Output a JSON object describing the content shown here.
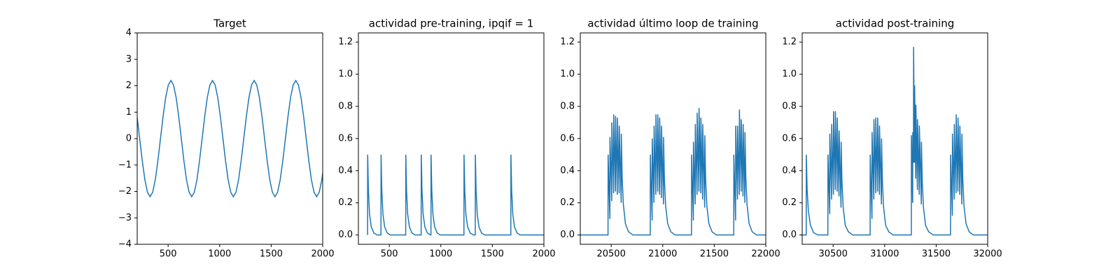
{
  "chart_data": [
    {
      "type": "line",
      "title": "Target",
      "color": "#1f77b4",
      "xlim": [
        200,
        2000
      ],
      "ylim": [
        -4,
        4
      ],
      "xticks": [
        500,
        1000,
        1500,
        2000
      ],
      "yticks": [
        {
          "value": -4,
          "label": "−4"
        },
        {
          "value": -3,
          "label": "−3"
        },
        {
          "value": -2,
          "label": "−2"
        },
        {
          "value": -1,
          "label": "−1"
        },
        0,
        1,
        2,
        3,
        4
      ],
      "x": [
        200,
        224,
        249.25,
        274.5,
        299.75,
        325,
        350.25,
        375.5,
        400.75,
        426,
        451.25,
        476.5,
        501.75,
        527,
        552.25,
        577.5,
        602.75,
        628,
        653.25,
        678.5,
        703.75,
        729,
        754.25,
        779.5,
        804.75,
        830,
        855.25,
        880.5,
        905.75,
        931,
        956.25,
        981.5,
        1006.75,
        1032,
        1057.25,
        1082.5,
        1107.75,
        1133,
        1158.25,
        1183.5,
        1208.75,
        1234,
        1259.25,
        1284.5,
        1309.75,
        1335,
        1360.25,
        1385.5,
        1410.75,
        1436,
        1461.25,
        1486.5,
        1511.75,
        1537,
        1562.25,
        1587.5,
        1612.75,
        1638,
        1663.25,
        1688.5,
        1713.75,
        1739,
        1764.25,
        1789.5,
        1814.75,
        1840,
        1865.25,
        1890.5,
        1915.75,
        1941,
        1966.25,
        1991.5,
        2000
      ],
      "values": [
        0.8,
        0,
        -0.84,
        -1.56,
        -2.03,
        -2.2,
        -2.03,
        -1.56,
        -0.84,
        0,
        0.84,
        1.56,
        2.03,
        2.2,
        2.03,
        1.56,
        0.84,
        0,
        -0.84,
        -1.56,
        -2.03,
        -2.2,
        -2.03,
        -1.56,
        -0.84,
        0,
        0.84,
        1.56,
        2.03,
        2.2,
        2.03,
        1.56,
        0.84,
        0,
        -0.84,
        -1.56,
        -2.03,
        -2.2,
        -2.03,
        -1.56,
        -0.84,
        0,
        0.84,
        1.56,
        2.03,
        2.2,
        2.03,
        1.56,
        0.84,
        0,
        -0.84,
        -1.56,
        -2.03,
        -2.2,
        -2.03,
        -1.56,
        -0.84,
        0,
        0.84,
        1.56,
        2.03,
        2.2,
        2.03,
        1.56,
        0.84,
        0,
        -0.84,
        -1.56,
        -2.03,
        -2.2,
        -2.03,
        -1.56,
        -1.3
      ]
    },
    {
      "type": "line",
      "title": "actividad pre-training, ipqif = 1",
      "color": "#1f77b4",
      "xlim": [
        200,
        2000
      ],
      "ylim": [
        -0.058,
        1.257
      ],
      "xticks": [
        500,
        1000,
        1500,
        2000
      ],
      "yticks": [
        {
          "value": 0,
          "label": "0.0"
        },
        0.2,
        0.4,
        0.6,
        0.8,
        {
          "value": 1,
          "label": "1.0"
        },
        1.2
      ],
      "x": [
        289,
        290,
        297,
        308,
        325,
        350,
        380,
        419,
        420,
        427,
        438,
        455,
        480,
        510,
        659,
        660,
        667,
        678,
        695,
        720,
        750,
        809,
        810,
        817,
        828,
        845,
        870,
        900,
        904,
        905,
        912,
        923,
        940,
        965,
        995,
        1224,
        1225,
        1232,
        1243,
        1260,
        1285,
        1315,
        1334,
        1335,
        1342,
        1353,
        1370,
        1395,
        1425,
        1679,
        1680,
        1687,
        1698,
        1715,
        1740,
        1770,
        2000
      ],
      "values": [
        0,
        0.5,
        0.28,
        0.13,
        0.05,
        0.012,
        0,
        0,
        0.5,
        0.28,
        0.13,
        0.05,
        0.012,
        0,
        0,
        0.5,
        0.28,
        0.13,
        0.05,
        0.012,
        0,
        0,
        0.5,
        0.28,
        0.13,
        0.05,
        0.012,
        0,
        0,
        0.5,
        0.28,
        0.13,
        0.05,
        0.012,
        0,
        0,
        0.5,
        0.28,
        0.13,
        0.05,
        0.012,
        0,
        0,
        0.5,
        0.28,
        0.13,
        0.05,
        0.012,
        0,
        0,
        0.5,
        0.28,
        0.13,
        0.05,
        0.012,
        0,
        0
      ]
    },
    {
      "type": "line",
      "title": "actividad último loop de training",
      "color": "#1f77b4",
      "xlim": [
        20200,
        22000
      ],
      "ylim": [
        -0.058,
        1.257
      ],
      "xticks": [
        20500,
        21000,
        21500,
        22000
      ],
      "yticks": [
        {
          "value": 0,
          "label": "0.0"
        },
        0.2,
        0.4,
        0.6,
        0.8,
        {
          "value": 1,
          "label": "1.0"
        },
        1.2
      ],
      "x": [
        20200,
        20469,
        20470,
        20487,
        20488,
        20505,
        20506,
        20523,
        20524,
        20541,
        20542,
        20559,
        20560,
        20577,
        20578,
        20597,
        20598,
        20606,
        20618,
        20638,
        20668,
        20710,
        20879,
        20880,
        20897,
        20898,
        20915,
        20916,
        20933,
        20934,
        20951,
        20952,
        20969,
        20970,
        20987,
        20988,
        21007,
        21008,
        21016,
        21028,
        21048,
        21078,
        21120,
        21279,
        21280,
        21297,
        21298,
        21315,
        21316,
        21333,
        21334,
        21351,
        21352,
        21369,
        21370,
        21387,
        21388,
        21407,
        21408,
        21416,
        21428,
        21448,
        21478,
        21520,
        21689,
        21690,
        21707,
        21708,
        21725,
        21726,
        21743,
        21744,
        21761,
        21762,
        21779,
        21780,
        21797,
        21798,
        21806,
        21818,
        21838,
        21868,
        21910,
        22000
      ],
      "values": [
        0,
        0,
        0.5,
        0.1,
        0.61,
        0.21,
        0.7,
        0.26,
        0.75,
        0.27,
        0.74,
        0.25,
        0.73,
        0.26,
        0.68,
        0.2,
        0.63,
        0.36,
        0.19,
        0.07,
        0.02,
        0,
        0,
        0.5,
        0.09,
        0.6,
        0.2,
        0.68,
        0.25,
        0.75,
        0.27,
        0.75,
        0.25,
        0.73,
        0.23,
        0.68,
        0.19,
        0.61,
        0.35,
        0.18,
        0.07,
        0.02,
        0,
        0,
        0.5,
        0.09,
        0.58,
        0.19,
        0.69,
        0.25,
        0.76,
        0.27,
        0.79,
        0.26,
        0.73,
        0.22,
        0.69,
        0.17,
        0.62,
        0.35,
        0.18,
        0.07,
        0.02,
        0,
        0,
        0.5,
        0.09,
        0.68,
        0.22,
        0.68,
        0.25,
        0.78,
        0.27,
        0.72,
        0.24,
        0.69,
        0.2,
        0.64,
        0.36,
        0.19,
        0.07,
        0.02,
        0,
        0
      ]
    },
    {
      "type": "line",
      "title": "actividad post-training",
      "color": "#1f77b4",
      "xlim": [
        30200,
        32000
      ],
      "ylim": [
        -0.058,
        1.257
      ],
      "xticks": [
        30500,
        31000,
        31500,
        32000
      ],
      "yticks": [
        {
          "value": 0,
          "label": "0.0"
        },
        0.2,
        0.4,
        0.6,
        0.8,
        {
          "value": 1,
          "label": "1.0"
        },
        1.2
      ],
      "x": [
        30200,
        30239,
        30240,
        30248,
        30260,
        30280,
        30310,
        30350,
        30449,
        30450,
        30467,
        30468,
        30485,
        30486,
        30503,
        30504,
        30521,
        30522,
        30539,
        30540,
        30557,
        30558,
        30577,
        30578,
        30586,
        30598,
        30618,
        30648,
        30690,
        30859,
        30860,
        30877,
        30878,
        30895,
        30896,
        30913,
        30914,
        30931,
        30932,
        30949,
        30950,
        30969,
        30970,
        30978,
        30990,
        31010,
        31040,
        31080,
        31259,
        31260,
        31272,
        31273,
        31280,
        31281,
        31290,
        31291,
        31302,
        31303,
        31318,
        31319,
        31336,
        31337,
        31356,
        31357,
        31365,
        31377,
        31397,
        31427,
        31470,
        31639,
        31640,
        31657,
        31658,
        31675,
        31676,
        31693,
        31694,
        31711,
        31712,
        31729,
        31730,
        31749,
        31750,
        31758,
        31770,
        31790,
        31820,
        31860,
        32000
      ],
      "values": [
        0,
        0,
        0.5,
        0.28,
        0.15,
        0.06,
        0.015,
        0,
        0,
        0.5,
        0.13,
        0.63,
        0.22,
        0.69,
        0.25,
        0.77,
        0.28,
        0.77,
        0.27,
        0.73,
        0.24,
        0.65,
        0.17,
        0.58,
        0.33,
        0.17,
        0.06,
        0.02,
        0,
        0,
        0.5,
        0.1,
        0.64,
        0.22,
        0.72,
        0.26,
        0.73,
        0.27,
        0.73,
        0.25,
        0.68,
        0.19,
        0.6,
        0.34,
        0.17,
        0.06,
        0.02,
        0,
        0,
        0.62,
        0.2,
        0.64,
        0.45,
        1.17,
        0.45,
        0.93,
        0.35,
        0.81,
        0.28,
        0.72,
        0.25,
        0.68,
        0.19,
        0.58,
        0.33,
        0.17,
        0.06,
        0.02,
        0,
        0,
        0.5,
        0.12,
        0.63,
        0.22,
        0.69,
        0.26,
        0.75,
        0.27,
        0.73,
        0.25,
        0.68,
        0.19,
        0.63,
        0.35,
        0.18,
        0.07,
        0.02,
        0,
        0
      ]
    }
  ]
}
